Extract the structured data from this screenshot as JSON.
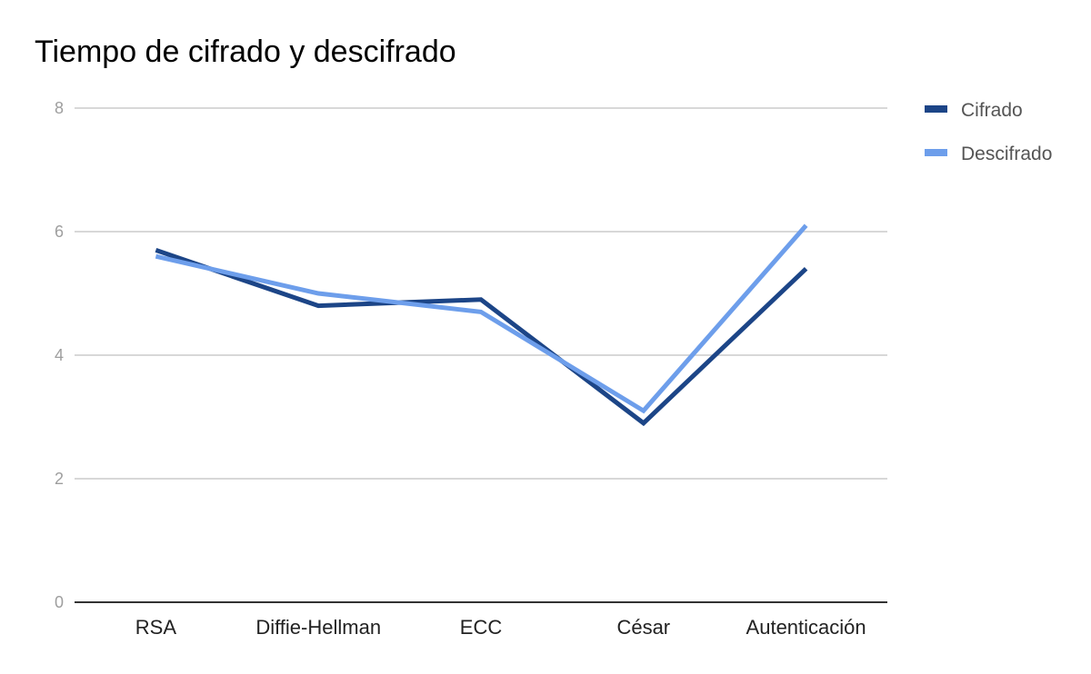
{
  "chart_data": {
    "type": "line",
    "title": "Tiempo de cifrado y descifrado",
    "categories": [
      "RSA",
      "Diffie-Hellman",
      "ECC",
      "César",
      "Autenticación"
    ],
    "series": [
      {
        "name": "Cifrado",
        "color": "#1c4587",
        "values": [
          5.7,
          4.8,
          4.9,
          2.9,
          5.4
        ]
      },
      {
        "name": "Descifrado",
        "color": "#6d9eeb",
        "values": [
          5.6,
          5.0,
          4.7,
          3.1,
          6.1
        ]
      }
    ],
    "ylim": [
      0,
      8
    ],
    "yticks": [
      "0",
      "2",
      "4",
      "6",
      "8"
    ],
    "grid": true,
    "legend": "right"
  }
}
